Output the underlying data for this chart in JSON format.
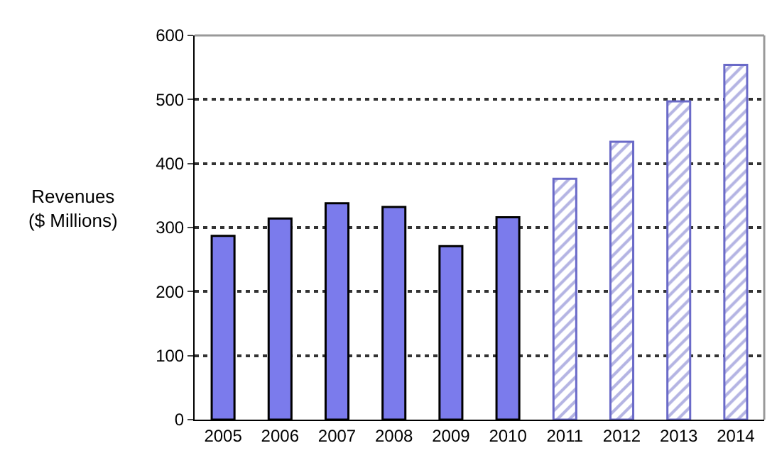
{
  "chart_data": {
    "type": "bar",
    "ylabel": "Revenues\n($ Millions)",
    "categories": [
      "2005",
      "2006",
      "2007",
      "2008",
      "2009",
      "2010",
      "2011",
      "2012",
      "2013",
      "2014"
    ],
    "series": [
      {
        "color": "#7b7bec",
        "values": [
          287,
          314,
          338,
          332,
          271,
          316,
          null,
          null,
          null,
          null
        ]
      },
      {
        "color": "#6a6ac8",
        "values": [
          null,
          null,
          null,
          null,
          null,
          null,
          376,
          434,
          497,
          554
        ]
      }
    ],
    "ylim": [
      0,
      600
    ],
    "yticks": [
      0,
      100,
      200,
      300,
      400,
      500,
      600
    ],
    "grid": "y",
    "legend": false
  }
}
